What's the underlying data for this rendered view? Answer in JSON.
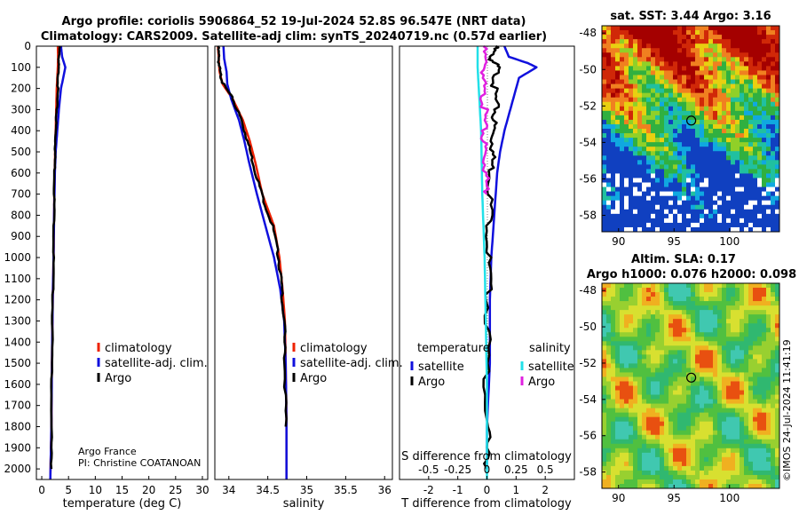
{
  "title_line1": "Argo profile: coriolis 5906864_52 19-Jul-2024 52.8S 96.547E (NRT data)",
  "title_line2": "Climatology: CARS2009. Satellite-adj clim: synTS_20240719.nc (0.57d earlier)",
  "credit_line1": "Argo France",
  "credit_line2": "PI: Christine COATANOAN",
  "timestamp": "©IMOS 24-Jul-2024 11:41:19",
  "colors": {
    "climatology": "#ee2200",
    "satellite": "#1010dd",
    "argo": "#000000",
    "sat_salinity": "#22e0e8",
    "argo_salinity": "#e020e0"
  },
  "chart_data": [
    {
      "type": "line",
      "name": "temperature",
      "xlabel": "temperature (deg C)",
      "ylabel": "depth",
      "xlim": [
        -1,
        31
      ],
      "ylim": [
        2050,
        0
      ],
      "xticks": [
        0,
        5,
        10,
        15,
        20,
        25,
        30
      ],
      "yticks": [
        0,
        100,
        200,
        300,
        400,
        500,
        600,
        700,
        800,
        900,
        1000,
        1100,
        1200,
        1300,
        1400,
        1500,
        1600,
        1700,
        1800,
        1900,
        2000
      ],
      "legend": [
        "climatology",
        "satellite-adj. clim.",
        "Argo"
      ],
      "series": [
        {
          "name": "climatology",
          "x": [
            3.0,
            3.05,
            3.0,
            2.9,
            2.8,
            2.7,
            2.6,
            2.5,
            2.4,
            2.3,
            2.2,
            2.05,
            1.9,
            1.8,
            1.6
          ],
          "y": [
            0,
            50,
            100,
            150,
            200,
            300,
            400,
            500,
            600,
            800,
            1000,
            1200,
            1500,
            1800,
            2050
          ]
        },
        {
          "name": "satellite-adj. clim.",
          "x": [
            3.6,
            3.8,
            4.4,
            4.0,
            3.6,
            3.2,
            2.9,
            2.6,
            2.45,
            2.3,
            2.2,
            2.05,
            1.9,
            1.8,
            1.6
          ],
          "y": [
            0,
            50,
            100,
            150,
            200,
            300,
            400,
            500,
            600,
            800,
            1000,
            1200,
            1500,
            1800,
            2050
          ]
        },
        {
          "name": "Argo",
          "x": [
            3.3,
            3.2,
            3.1,
            3.0,
            2.8,
            2.6,
            2.5,
            2.4,
            2.3,
            2.2,
            2.05,
            1.9,
            1.8,
            1.8
          ],
          "y": [
            0,
            50,
            100,
            200,
            300,
            400,
            500,
            600,
            800,
            1000,
            1200,
            1500,
            1800,
            2000
          ]
        }
      ]
    },
    {
      "type": "line",
      "name": "salinity",
      "xlabel": "salinity",
      "xlim": [
        33.82,
        36.1
      ],
      "ylim": [
        2050,
        0
      ],
      "xticks": [
        34,
        34.5,
        35,
        35.5,
        36
      ],
      "legend": [
        "climatology",
        "satellite-adj. clim.",
        "Argo"
      ],
      "series": [
        {
          "name": "climatology",
          "x": [
            33.86,
            33.87,
            33.88,
            33.92,
            34.05,
            34.18,
            34.27,
            34.34,
            34.43,
            34.58,
            34.65,
            34.69,
            34.72,
            34.73,
            34.74,
            34.74
          ],
          "y": [
            0,
            60,
            120,
            180,
            250,
            350,
            450,
            550,
            700,
            850,
            1000,
            1150,
            1300,
            1500,
            1800,
            2050
          ]
        },
        {
          "name": "satellite-adj. clim.",
          "x": [
            33.93,
            33.94,
            33.97,
            33.98,
            34.03,
            34.13,
            34.2,
            34.26,
            34.36,
            34.47,
            34.58,
            34.66,
            34.71,
            34.73,
            34.74,
            34.74
          ],
          "y": [
            0,
            60,
            120,
            180,
            250,
            350,
            450,
            550,
            700,
            850,
            1000,
            1150,
            1300,
            1500,
            1800,
            2050
          ]
        },
        {
          "name": "Argo",
          "x": [
            33.86,
            33.87,
            33.88,
            33.93,
            34.05,
            34.16,
            34.24,
            34.31,
            34.42,
            34.56,
            34.64,
            34.68,
            34.71,
            34.72,
            34.73
          ],
          "y": [
            0,
            60,
            120,
            180,
            250,
            350,
            450,
            550,
            700,
            850,
            1000,
            1150,
            1300,
            1500,
            1800
          ]
        }
      ]
    },
    {
      "type": "line",
      "name": "difference",
      "xlabel": "T difference from climatology",
      "xlabel_top": "S difference from climatology",
      "xlim": [
        -3,
        3
      ],
      "xlim_s": [
        -0.75,
        0.75
      ],
      "ylim": [
        2050,
        0
      ],
      "xticks": [
        -2,
        -1,
        0,
        1,
        2
      ],
      "xticks_top": [
        "-0.5",
        "-0.25",
        "0",
        "0.25",
        "0.5"
      ],
      "legend_left_title": "temperature",
      "legend_right_title": "salinity",
      "legend_left": [
        "satellite",
        "Argo"
      ],
      "legend_right": [
        "satellite",
        "Argo"
      ],
      "series": [
        {
          "name": "T satellite",
          "x": [
            0.6,
            0.75,
            1.4,
            1.7,
            1.1,
            0.8,
            0.6,
            0.45,
            0.35,
            0.25,
            0.15,
            0.1,
            0.1,
            0.0,
            0.0
          ],
          "y": [
            0,
            50,
            80,
            100,
            150,
            300,
            400,
            500,
            600,
            800,
            1000,
            1200,
            1500,
            1800,
            2000
          ]
        },
        {
          "name": "T Argo",
          "x": [
            0.3,
            0.1,
            0.35,
            0.25,
            0.3,
            0.2,
            0.2,
            0.15,
            0.1,
            0.05,
            0.05,
            0.0,
            0.0,
            0.0
          ],
          "y": [
            0,
            50,
            100,
            200,
            300,
            400,
            500,
            600,
            800,
            1000,
            1200,
            1500,
            1800,
            2000
          ]
        },
        {
          "name": "S satellite",
          "x": [
            -0.08,
            -0.08,
            -0.07,
            -0.05,
            -0.04,
            -0.02,
            -0.01,
            0.0,
            0.0,
            0.0
          ],
          "y": [
            0,
            100,
            200,
            400,
            700,
            1000,
            1300,
            1600,
            1900,
            2050
          ]
        },
        {
          "name": "S Argo",
          "x": [
            -0.03,
            -0.02,
            -0.04,
            -0.02,
            -0.03,
            -0.02,
            -0.01,
            0.0
          ],
          "y": [
            0,
            100,
            200,
            300,
            400,
            500,
            600,
            700
          ]
        }
      ]
    },
    {
      "type": "heatmap",
      "name": "sst_map",
      "title": "sat. SST: 3.44 Argo: 3.16",
      "xlim": [
        88.5,
        104.5
      ],
      "ylim": [
        -58.9,
        -47.6
      ],
      "xticks": [
        90,
        95,
        100
      ],
      "yticks": [
        -48,
        -50,
        -52,
        -54,
        -56,
        -58
      ],
      "marker": {
        "lon": 96.55,
        "lat": -52.8
      }
    },
    {
      "type": "heatmap",
      "name": "sla_map",
      "title_line1": "Altim. SLA: 0.17",
      "title_line2": "Argo h1000: 0.076 h2000: 0.098",
      "xlim": [
        88.5,
        104.5
      ],
      "ylim": [
        -58.9,
        -47.6
      ],
      "xticks": [
        90,
        95,
        100
      ],
      "yticks": [
        -48,
        -50,
        -52,
        -54,
        -56,
        -58
      ],
      "marker": {
        "lon": 96.55,
        "lat": -52.8
      }
    }
  ]
}
